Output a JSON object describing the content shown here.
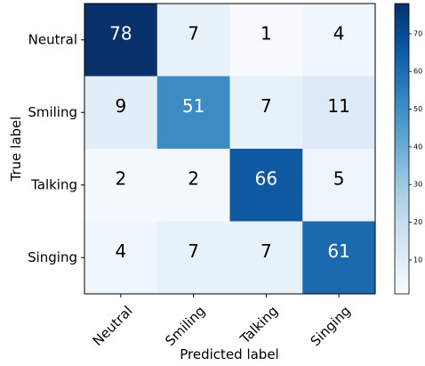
{
  "chart_data": {
    "type": "heatmap",
    "rows": [
      "Neutral",
      "Smiling",
      "Talking",
      "Singing"
    ],
    "columns": [
      "Neutral",
      "Smiling",
      "Talking",
      "Singing"
    ],
    "values": [
      [
        78,
        7,
        1,
        4
      ],
      [
        9,
        51,
        7,
        11
      ],
      [
        2,
        2,
        66,
        5
      ],
      [
        4,
        7,
        7,
        61
      ]
    ],
    "xlabel": "Predicted label",
    "ylabel": "True label",
    "colormap": "Blues",
    "colorbar": {
      "min": 1,
      "max": 78,
      "ticks": [
        "10",
        "20",
        "30",
        "40",
        "50",
        "60",
        "70"
      ]
    },
    "text_colors": {
      "dark": "#000000",
      "light": "#ffffff"
    },
    "threshold": 39
  }
}
